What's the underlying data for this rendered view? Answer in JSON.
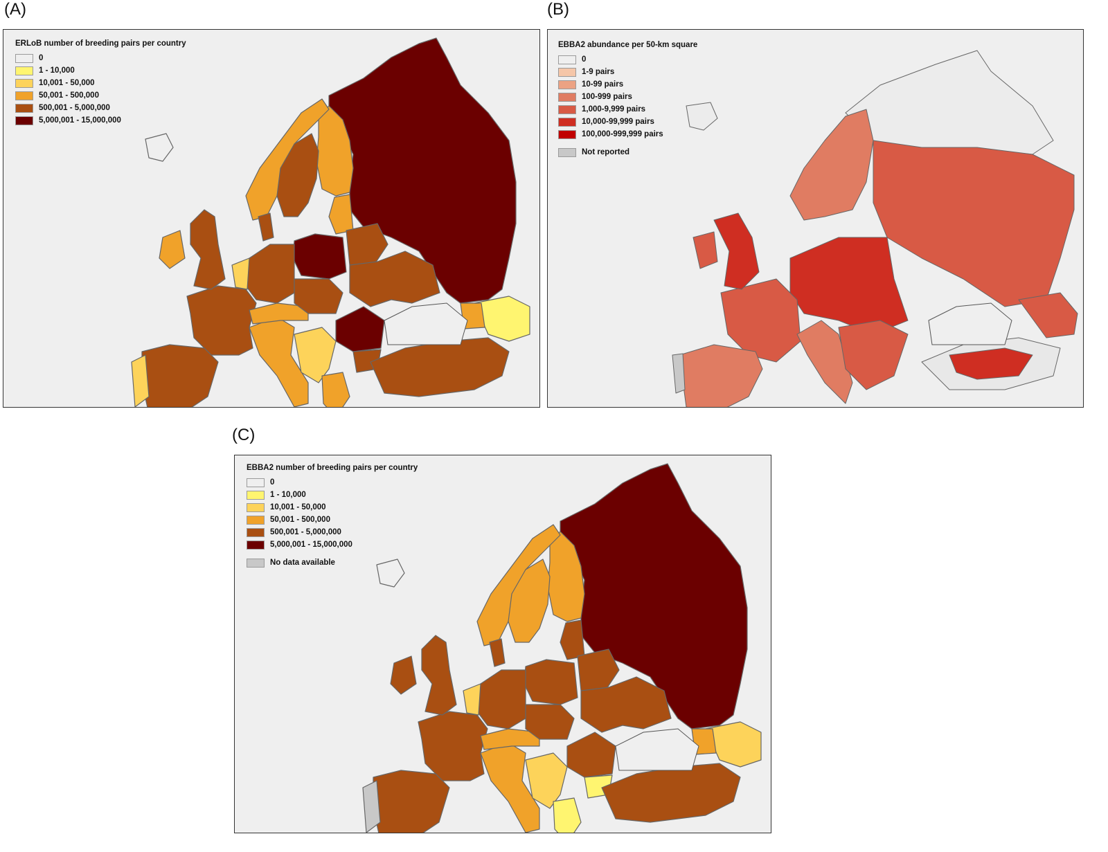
{
  "panels": {
    "a": {
      "letter": "(A)",
      "title": "ERLoB number of breeding pairs per country",
      "legend": [
        {
          "label": "0",
          "color": "#efefef"
        },
        {
          "label": "1 - 10,000",
          "color": "#fff570"
        },
        {
          "label": "10,001 - 50,000",
          "color": "#fdd35a"
        },
        {
          "label": "50,001 - 500,000",
          "color": "#f0a22a"
        },
        {
          "label": "500,001 - 5,000,000",
          "color": "#a94f12"
        },
        {
          "label": "5,000,001 - 15,000,000",
          "color": "#6b0000"
        }
      ]
    },
    "b": {
      "letter": "(B)",
      "title": "EBBA2 abundance per 50-km square",
      "legend": [
        {
          "label": "0",
          "color": "#efefef"
        },
        {
          "label": "1-9 pairs",
          "color": "#f5c6a8"
        },
        {
          "label": "10-99 pairs",
          "color": "#eca283"
        },
        {
          "label": "100-999 pairs",
          "color": "#e07c62"
        },
        {
          "label": "1,000-9,999 pairs",
          "color": "#d85a45"
        },
        {
          "label": "10,000-99,999 pairs",
          "color": "#cf2e22"
        },
        {
          "label": "100,000-999,999 pairs",
          "color": "#c00000"
        }
      ],
      "extra_legend": {
        "label": "Not reported",
        "color": "#c8c8c8"
      }
    },
    "c": {
      "letter": "(C)",
      "title": "EBBA2 number of breeding pairs per country",
      "legend": [
        {
          "label": "0",
          "color": "#efefef"
        },
        {
          "label": "1 - 10,000",
          "color": "#fff570"
        },
        {
          "label": "10,001 - 50,000",
          "color": "#fdd35a"
        },
        {
          "label": "50,001 - 500,000",
          "color": "#f0a22a"
        },
        {
          "label": "500,001 - 5,000,000",
          "color": "#a94f12"
        },
        {
          "label": "5,000,001 - 15,000,000",
          "color": "#6b0000"
        }
      ],
      "extra_legend": {
        "label": "No data available",
        "color": "#c8c8c8"
      }
    }
  },
  "map_colors": {
    "sea": "#efefef",
    "border": "#666666",
    "coast": "#555555"
  }
}
